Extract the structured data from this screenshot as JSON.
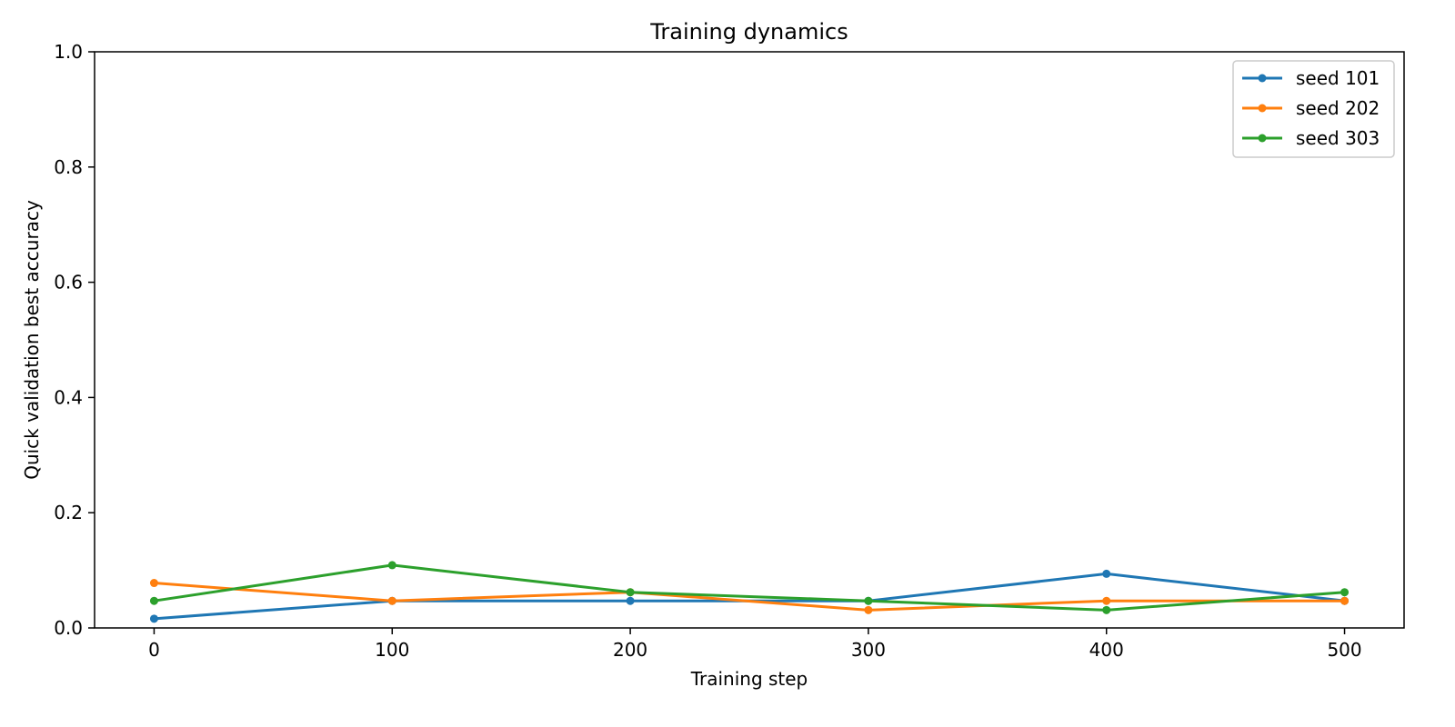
{
  "chart_data": {
    "type": "line",
    "title": "Training dynamics",
    "xlabel": "Training step",
    "ylabel": "Quick validation best accuracy",
    "x": [
      0,
      100,
      200,
      300,
      400,
      500
    ],
    "xlim": [
      -25,
      525
    ],
    "ylim": [
      0,
      1.0
    ],
    "xticks": [
      0,
      100,
      200,
      300,
      400,
      500
    ],
    "xtick_labels": [
      "0",
      "100",
      "200",
      "300",
      "400",
      "500"
    ],
    "yticks": [
      0,
      0.2,
      0.4,
      0.6,
      0.8,
      1.0
    ],
    "ytick_labels": [
      "0.0",
      "0.2",
      "0.4",
      "0.6",
      "0.8",
      "1.0"
    ],
    "grid": false,
    "legend_position": "top-right",
    "series": [
      {
        "name": "seed 101",
        "color": "#1f77b4",
        "values": [
          0.016,
          0.047,
          0.047,
          0.047,
          0.094,
          0.047
        ]
      },
      {
        "name": "seed 202",
        "color": "#ff7f0e",
        "values": [
          0.078,
          0.047,
          0.062,
          0.031,
          0.047,
          0.047
        ]
      },
      {
        "name": "seed 303",
        "color": "#2ca02c",
        "values": [
          0.047,
          0.109,
          0.062,
          0.047,
          0.031,
          0.062
        ]
      }
    ]
  }
}
